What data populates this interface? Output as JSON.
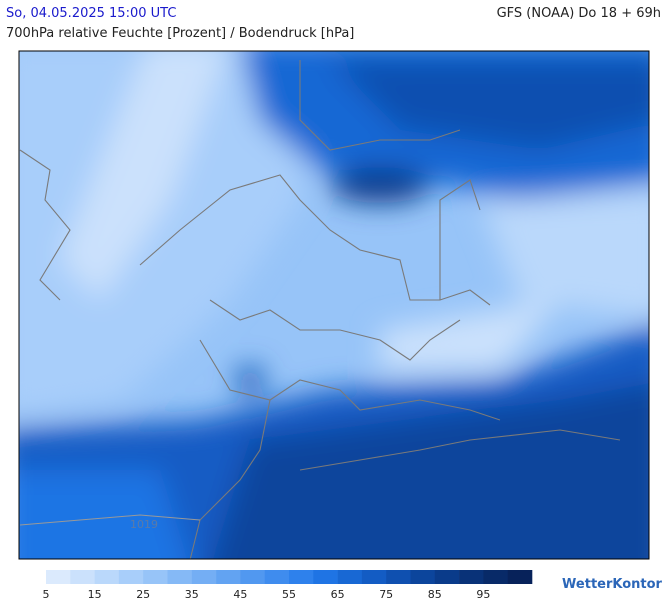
{
  "header": {
    "datetime": "So, 04.05.2025 15:00 UTC",
    "model": "GFS (NOAA) Do 18 + 69h",
    "title": "700hPa relative Feuchte [Prozent] / Bodendruck [hPa]"
  },
  "map": {
    "isobar_label": "1019"
  },
  "legend": {
    "colors": [
      "#dbeafd",
      "#cbe1fc",
      "#bad8fb",
      "#a8cefa",
      "#97c4f8",
      "#85b9f6",
      "#74aef4",
      "#62a3f2",
      "#5198f0",
      "#3f8cee",
      "#2e81ec",
      "#1f74e4",
      "#1868d4",
      "#135cc4",
      "#0f50b0",
      "#0c459c",
      "#0a3b8a",
      "#093278",
      "#082a68",
      "#07225a"
    ],
    "labels": [
      5,
      15,
      25,
      35,
      45,
      55,
      65,
      75,
      85,
      95
    ]
  },
  "brand": "WetterKontor"
}
